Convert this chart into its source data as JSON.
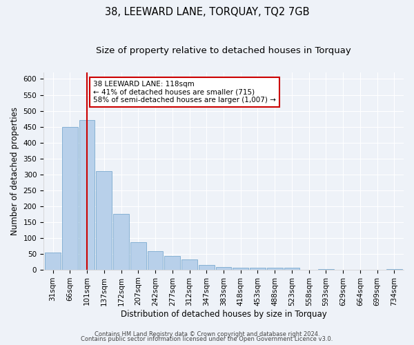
{
  "title": "38, LEEWARD LANE, TORQUAY, TQ2 7GB",
  "subtitle": "Size of property relative to detached houses in Torquay",
  "xlabel": "Distribution of detached houses by size in Torquay",
  "ylabel": "Number of detached properties",
  "categories": [
    "31sqm",
    "66sqm",
    "101sqm",
    "137sqm",
    "172sqm",
    "207sqm",
    "242sqm",
    "277sqm",
    "312sqm",
    "347sqm",
    "383sqm",
    "418sqm",
    "453sqm",
    "488sqm",
    "523sqm",
    "558sqm",
    "593sqm",
    "629sqm",
    "664sqm",
    "699sqm",
    "734sqm"
  ],
  "values": [
    53,
    450,
    470,
    310,
    175,
    87,
    57,
    42,
    32,
    14,
    8,
    5,
    6,
    5,
    6,
    0,
    2,
    0,
    0,
    0,
    2
  ],
  "bar_color": "#b8d0ea",
  "bar_edge_color": "#7aaacf",
  "vline_x_index": 2,
  "vline_color": "#cc0000",
  "annotation_text": "38 LEEWARD LANE: 118sqm\n← 41% of detached houses are smaller (715)\n58% of semi-detached houses are larger (1,007) →",
  "annotation_box_color": "#ffffff",
  "annotation_box_edge": "#cc0000",
  "ylim": [
    0,
    620
  ],
  "yticks": [
    0,
    50,
    100,
    150,
    200,
    250,
    300,
    350,
    400,
    450,
    500,
    550,
    600
  ],
  "footer1": "Contains HM Land Registry data © Crown copyright and database right 2024.",
  "footer2": "Contains public sector information licensed under the Open Government Licence v3.0.",
  "background_color": "#eef2f8",
  "grid_color": "#ffffff",
  "title_fontsize": 10.5,
  "subtitle_fontsize": 9.5,
  "axis_label_fontsize": 8.5,
  "tick_fontsize": 7.5,
  "footer_fontsize": 6.0
}
